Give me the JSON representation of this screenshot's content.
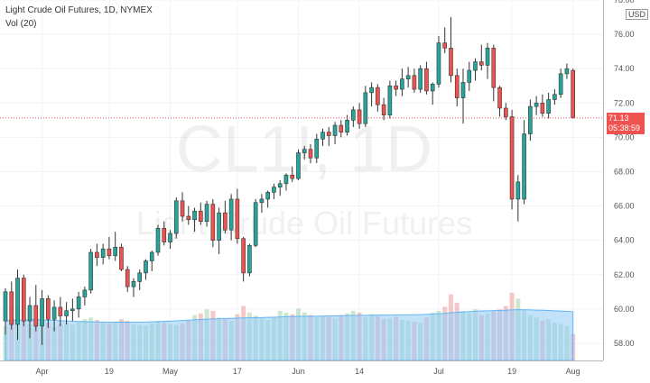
{
  "header": {
    "title": "Light Crude Oil Futures, 1D, NYMEX",
    "indicator": "Vol (20)",
    "currency": "USD"
  },
  "watermark": {
    "symbol": "CL1!, 1D",
    "name": "Light Crude Oil Futures"
  },
  "last_price": {
    "value": "71.13",
    "countdown": "05:38:59"
  },
  "colors": {
    "up": "#26a69a",
    "down": "#ef5350",
    "volume_ma": "#90caf9",
    "vol_up": "#a5d6a7",
    "vol_down": "#ef9a9a"
  },
  "chart_data": {
    "type": "candlestick",
    "title": "Light Crude Oil Futures, 1D, NYMEX",
    "ylim": [
      57,
      78
    ],
    "yticks": [
      "58.00",
      "60.00",
      "62.00",
      "64.00",
      "66.00",
      "68.00",
      "70.00",
      "72.00",
      "74.00",
      "76.00",
      "78.00"
    ],
    "xticks": [
      {
        "label": "Apr",
        "index": 6
      },
      {
        "label": "19",
        "index": 17
      },
      {
        "label": "May",
        "index": 27
      },
      {
        "label": "17",
        "index": 38
      },
      {
        "label": "Jun",
        "index": 48
      },
      {
        "label": "14",
        "index": 58
      },
      {
        "label": "Jul",
        "index": 71
      },
      {
        "label": "19",
        "index": 83
      },
      {
        "label": "Aug",
        "index": 93
      }
    ],
    "ohlc": [
      [
        59.3,
        61.2,
        58.5,
        61.0
      ],
      [
        61.0,
        61.6,
        58.8,
        59.1
      ],
      [
        59.1,
        62.3,
        58.2,
        61.8
      ],
      [
        61.8,
        62.0,
        59.0,
        59.3
      ],
      [
        59.3,
        60.7,
        58.3,
        60.2
      ],
      [
        60.2,
        61.4,
        58.7,
        59.0
      ],
      [
        59.0,
        61.1,
        57.9,
        60.6
      ],
      [
        60.6,
        60.8,
        58.9,
        59.4
      ],
      [
        59.4,
        60.5,
        58.7,
        60.1
      ],
      [
        60.1,
        60.7,
        59.0,
        59.6
      ],
      [
        59.6,
        60.4,
        59.1,
        59.9
      ],
      [
        59.9,
        60.6,
        59.3,
        60.0
      ],
      [
        60.0,
        61.0,
        59.5,
        60.7
      ],
      [
        60.7,
        61.3,
        60.2,
        61.1
      ],
      [
        61.1,
        63.5,
        60.9,
        63.3
      ],
      [
        63.3,
        63.8,
        62.5,
        63.0
      ],
      [
        63.0,
        63.8,
        62.6,
        63.5
      ],
      [
        63.5,
        64.2,
        62.9,
        63.1
      ],
      [
        63.1,
        64.5,
        62.8,
        63.6
      ],
      [
        63.6,
        63.8,
        62.2,
        62.3
      ],
      [
        62.3,
        62.5,
        61.0,
        61.3
      ],
      [
        61.3,
        61.8,
        60.7,
        61.6
      ],
      [
        61.6,
        62.3,
        61.1,
        62.1
      ],
      [
        62.1,
        62.9,
        61.7,
        62.8
      ],
      [
        62.8,
        63.4,
        62.2,
        63.3
      ],
      [
        63.3,
        64.9,
        63.1,
        64.7
      ],
      [
        64.7,
        65.1,
        63.7,
        63.9
      ],
      [
        63.9,
        64.6,
        63.5,
        64.4
      ],
      [
        64.4,
        66.5,
        64.1,
        66.3
      ],
      [
        66.3,
        66.8,
        65.1,
        65.4
      ],
      [
        65.4,
        66.0,
        64.9,
        65.2
      ],
      [
        65.2,
        65.9,
        64.5,
        65.7
      ],
      [
        65.7,
        66.2,
        64.9,
        65.1
      ],
      [
        65.1,
        66.3,
        64.8,
        66.1
      ],
      [
        66.1,
        66.4,
        63.6,
        64.0
      ],
      [
        64.0,
        65.9,
        63.2,
        65.6
      ],
      [
        65.6,
        66.3,
        64.4,
        64.6
      ],
      [
        64.6,
        66.7,
        64.0,
        66.4
      ],
      [
        66.4,
        67.0,
        63.8,
        64.1
      ],
      [
        64.1,
        64.2,
        61.6,
        62.1
      ],
      [
        62.1,
        63.8,
        61.9,
        63.7
      ],
      [
        63.7,
        66.4,
        63.6,
        66.2
      ],
      [
        66.2,
        66.7,
        65.6,
        66.4
      ],
      [
        66.4,
        66.9,
        65.9,
        66.8
      ],
      [
        66.8,
        67.3,
        66.4,
        67.1
      ],
      [
        67.1,
        67.5,
        66.6,
        67.3
      ],
      [
        67.3,
        67.9,
        66.9,
        67.8
      ],
      [
        67.8,
        68.3,
        67.4,
        67.6
      ],
      [
        67.6,
        69.3,
        67.5,
        69.1
      ],
      [
        69.1,
        69.5,
        68.7,
        69.3
      ],
      [
        69.3,
        69.6,
        68.5,
        68.8
      ],
      [
        68.8,
        70.2,
        68.5,
        69.9
      ],
      [
        69.9,
        70.5,
        69.5,
        70.3
      ],
      [
        70.3,
        70.6,
        69.5,
        70.1
      ],
      [
        70.1,
        70.9,
        69.6,
        70.7
      ],
      [
        70.7,
        71.0,
        70.0,
        70.3
      ],
      [
        70.3,
        71.3,
        70.1,
        71.0
      ],
      [
        71.0,
        71.8,
        70.6,
        71.6
      ],
      [
        71.6,
        72.0,
        70.5,
        70.8
      ],
      [
        70.8,
        73.0,
        70.6,
        72.6
      ],
      [
        72.6,
        73.2,
        71.8,
        72.9
      ],
      [
        72.9,
        73.1,
        71.5,
        71.9
      ],
      [
        71.9,
        72.3,
        71.0,
        71.3
      ],
      [
        71.3,
        73.3,
        71.1,
        73.0
      ],
      [
        73.0,
        73.3,
        72.4,
        72.8
      ],
      [
        72.8,
        74.0,
        72.4,
        73.4
      ],
      [
        73.4,
        74.1,
        72.9,
        73.6
      ],
      [
        73.6,
        74.0,
        72.6,
        72.8
      ],
      [
        72.8,
        74.2,
        72.6,
        74.0
      ],
      [
        74.0,
        74.4,
        72.5,
        72.7
      ],
      [
        72.7,
        73.2,
        71.9,
        73.1
      ],
      [
        73.1,
        75.9,
        72.9,
        75.5
      ],
      [
        75.5,
        76.4,
        74.9,
        75.2
      ],
      [
        75.2,
        77.0,
        73.2,
        73.6
      ],
      [
        73.6,
        74.0,
        71.8,
        72.3
      ],
      [
        72.3,
        74.0,
        70.8,
        73.2
      ],
      [
        73.2,
        74.4,
        72.7,
        73.9
      ],
      [
        73.9,
        74.6,
        73.3,
        74.4
      ],
      [
        74.4,
        75.4,
        73.9,
        74.2
      ],
      [
        74.2,
        75.5,
        73.4,
        75.2
      ],
      [
        75.2,
        75.4,
        72.1,
        72.9
      ],
      [
        72.9,
        73.0,
        71.2,
        71.7
      ],
      [
        71.7,
        72.0,
        71.0,
        71.2
      ],
      [
        71.2,
        71.6,
        65.8,
        66.4
      ],
      [
        66.4,
        67.8,
        65.1,
        67.4
      ],
      [
        66.4,
        71.0,
        66.1,
        70.2
      ],
      [
        70.2,
        72.2,
        69.8,
        71.8
      ],
      [
        71.8,
        72.4,
        71.3,
        72.0
      ],
      [
        72.0,
        72.5,
        71.2,
        71.4
      ],
      [
        71.4,
        72.6,
        71.1,
        72.2
      ],
      [
        72.2,
        72.8,
        71.9,
        72.5
      ],
      [
        72.5,
        74.0,
        72.3,
        73.7
      ],
      [
        73.7,
        74.3,
        73.4,
        74.0
      ],
      [
        73.9,
        74.0,
        71.1,
        71.13
      ]
    ],
    "volume_ylim": [
      0,
      120000
    ],
    "volume": [
      42000,
      51000,
      55000,
      48000,
      44000,
      52000,
      40000,
      46000,
      41000,
      44000,
      45000,
      43000,
      47000,
      50000,
      52000,
      49000,
      46000,
      45000,
      47000,
      50000,
      48000,
      44000,
      43000,
      42000,
      45000,
      48000,
      46000,
      44000,
      43000,
      45000,
      49000,
      55000,
      57000,
      62000,
      60000,
      52000,
      50000,
      48000,
      56000,
      66000,
      58000,
      54000,
      51000,
      49000,
      52000,
      60000,
      58000,
      56000,
      63000,
      58000,
      55000,
      52000,
      54000,
      53000,
      51000,
      55000,
      57000,
      60000,
      58000,
      52000,
      56000,
      54000,
      50000,
      51000,
      53000,
      49000,
      48000,
      47000,
      46000,
      52000,
      58000,
      60000,
      65000,
      80000,
      70000,
      60000,
      58000,
      62000,
      55000,
      57000,
      60000,
      62000,
      66000,
      82000,
      75000,
      62000,
      55000,
      52000,
      48000,
      50000,
      46000,
      44000,
      42000,
      32000
    ],
    "volume_ma": [
      48000,
      48500,
      49000,
      49000,
      49500,
      49500,
      49000,
      48700,
      48500,
      48200,
      47800,
      47500,
      47200,
      47000,
      46800,
      46700,
      46500,
      46400,
      46300,
      46300,
      46300,
      46300,
      46400,
      46500,
      46800,
      47000,
      47300,
      47600,
      48000,
      48400,
      48800,
      49200,
      49600,
      50000,
      50300,
      50600,
      50800,
      51000,
      51300,
      51500,
      51700,
      51900,
      52000,
      52200,
      52400,
      52700,
      53000,
      53200,
      53400,
      53500,
      53600,
      53600,
      53700,
      53800,
      54000,
      54200,
      54400,
      54500,
      54600,
      54700,
      54800,
      54900,
      55000,
      55000,
      55100,
      55200,
      55200,
      55300,
      55500,
      55800,
      56200,
      56600,
      57000,
      57800,
      58400,
      58800,
      59200,
      59600,
      60000,
      60200,
      60400,
      60600,
      60800,
      61200,
      61500,
      61400,
      61200,
      61000,
      60800,
      60500,
      60200,
      59800,
      59400,
      59000
    ]
  }
}
